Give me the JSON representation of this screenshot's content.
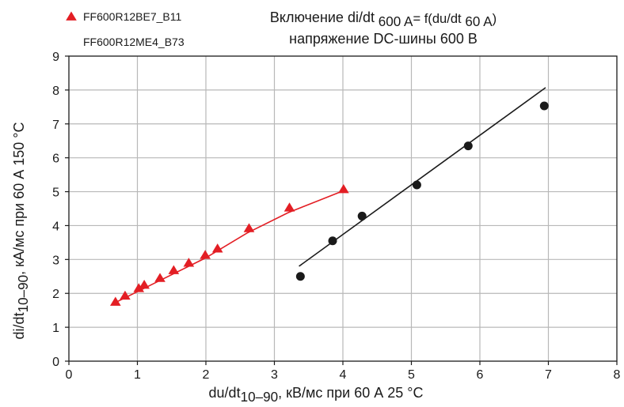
{
  "chart_data": {
    "type": "scatter",
    "title": {
      "line1": [
        {
          "text": "Включение di/dt",
          "role": "normal"
        },
        {
          "text": "600 A",
          "role": "sub"
        },
        {
          "text": "= f(du/dt",
          "role": "sup"
        },
        {
          "text": "60 A",
          "role": "sub"
        },
        {
          "text": ")",
          "role": "sup"
        }
      ],
      "line2": "напряжение DC-шины 600 В"
    },
    "xlabel": [
      {
        "text": "du/dt",
        "role": "normal"
      },
      {
        "text": "10–90",
        "role": "sub"
      },
      {
        "text": ", кВ/мс при 60 А 25 °С",
        "role": "normal"
      }
    ],
    "ylabel": [
      {
        "text": "di/dt",
        "role": "normal"
      },
      {
        "text": "10–90",
        "role": "sub"
      },
      {
        "text": ", кА/мс при 60 А 150 °С",
        "role": "normal"
      }
    ],
    "xlim": [
      0,
      8
    ],
    "ylim": [
      0,
      9
    ],
    "xticks": [
      "0",
      "1",
      "2",
      "3",
      "4",
      "5",
      "6",
      "7",
      "8"
    ],
    "yticks": [
      "0",
      "1",
      "2",
      "3",
      "4",
      "5",
      "6",
      "7",
      "8",
      "9"
    ],
    "grid": true,
    "legend_position": "top-left",
    "series": [
      {
        "name": "FF600R12BE7_B11",
        "marker": "triangle",
        "color": "#e31e24",
        "points": [
          {
            "x": 0.68,
            "y": 1.75
          },
          {
            "x": 0.82,
            "y": 1.93
          },
          {
            "x": 1.02,
            "y": 2.15
          },
          {
            "x": 1.1,
            "y": 2.25
          },
          {
            "x": 1.33,
            "y": 2.45
          },
          {
            "x": 1.53,
            "y": 2.68
          },
          {
            "x": 1.75,
            "y": 2.9
          },
          {
            "x": 1.99,
            "y": 3.13
          },
          {
            "x": 2.17,
            "y": 3.32
          },
          {
            "x": 2.63,
            "y": 3.92
          },
          {
            "x": 3.22,
            "y": 4.53
          },
          {
            "x": 4.01,
            "y": 5.07
          }
        ],
        "trend": [
          {
            "x": 0.68,
            "y": 1.73
          },
          {
            "x": 1.3,
            "y": 2.35
          },
          {
            "x": 2.0,
            "y": 3.05
          },
          {
            "x": 2.6,
            "y": 3.78
          },
          {
            "x": 3.2,
            "y": 4.38
          },
          {
            "x": 4.01,
            "y": 5.03
          }
        ]
      },
      {
        "name": "FF600R12ME4_B73",
        "marker": "circle",
        "color": "#1a1a1a",
        "points": [
          {
            "x": 3.38,
            "y": 2.5
          },
          {
            "x": 3.85,
            "y": 3.55
          },
          {
            "x": 4.28,
            "y": 4.28
          },
          {
            "x": 5.08,
            "y": 5.2
          },
          {
            "x": 5.83,
            "y": 6.35
          },
          {
            "x": 6.94,
            "y": 7.53
          }
        ],
        "trend": [
          {
            "x": 3.36,
            "y": 2.8
          },
          {
            "x": 6.96,
            "y": 8.07
          }
        ]
      }
    ]
  }
}
